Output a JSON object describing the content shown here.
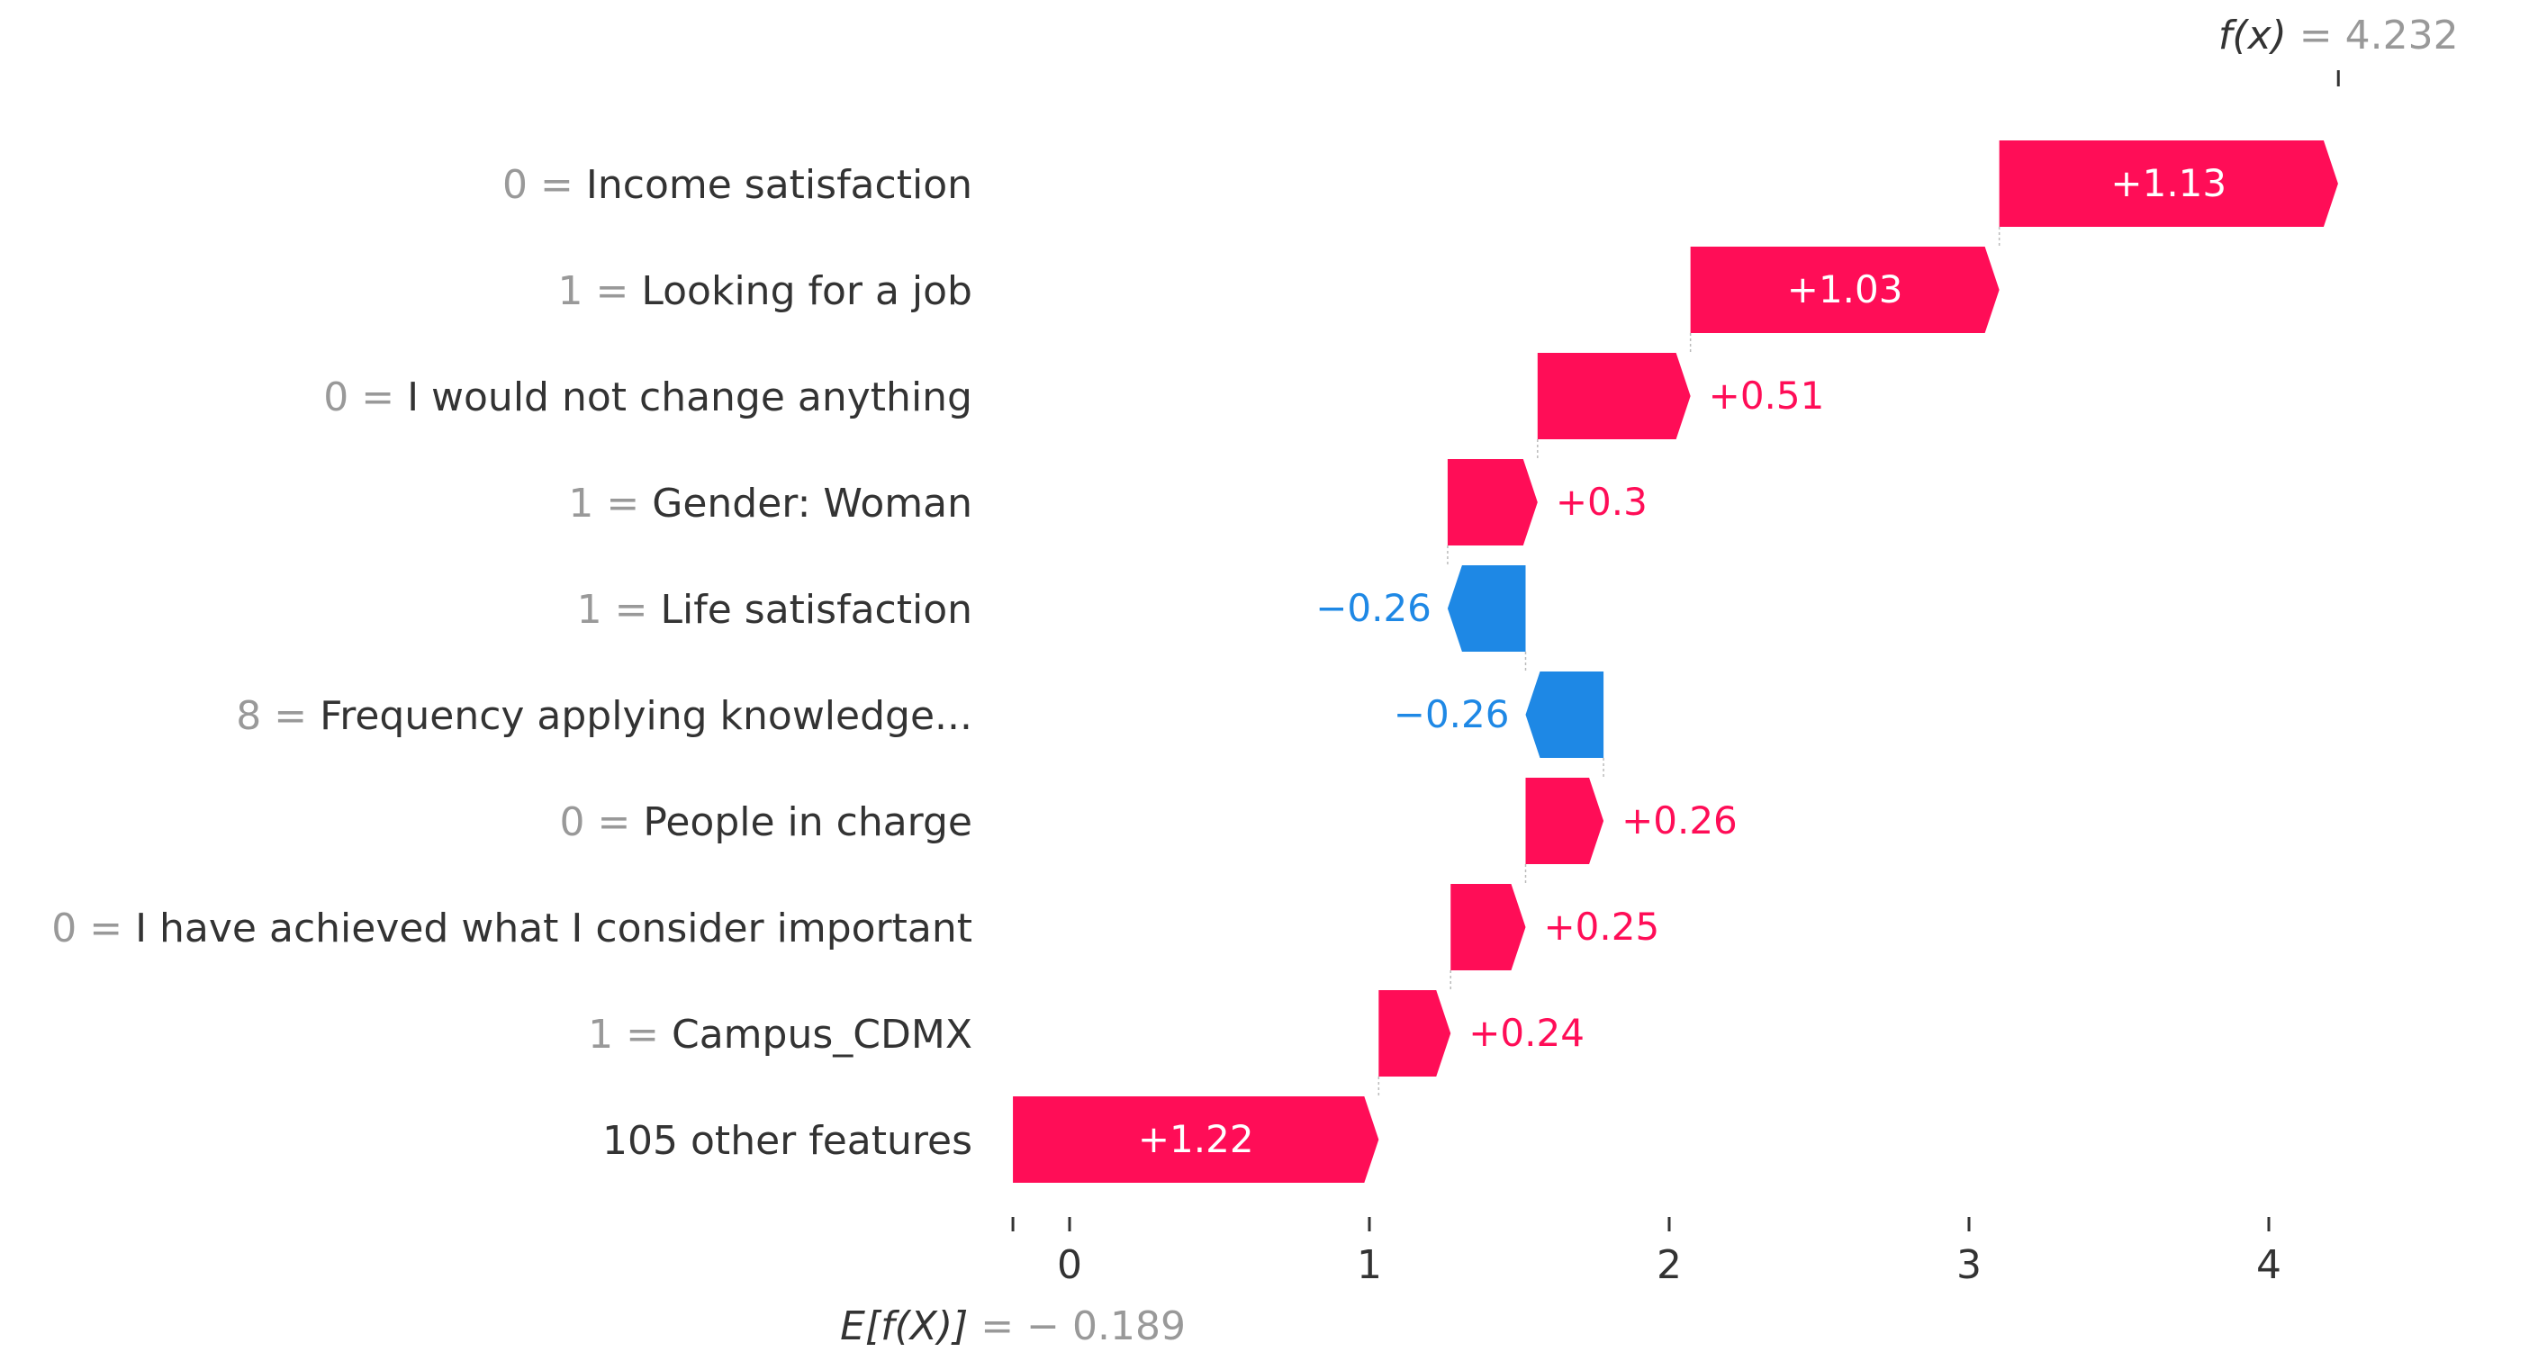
{
  "chart_data": {
    "type": "waterfall",
    "base_value": -0.189,
    "fx_value": 4.232,
    "fx_label": "f(x)",
    "fx_text": "= 4.232",
    "ex_label": "E[f(X)]",
    "ex_text": "= − 0.189",
    "xlim": [
      -0.35,
      4.7
    ],
    "xticks": [
      0,
      1,
      2,
      3,
      4
    ],
    "colors": {
      "positive": "#ff0d57",
      "negative": "#1e88e5",
      "value_text": "#999999",
      "label_text": "#333333"
    },
    "features": [
      {
        "value": "0 =",
        "name": "Income satisfaction",
        "shap": 1.13,
        "label": "+1.13"
      },
      {
        "value": "1 =",
        "name": "Looking for a job",
        "shap": 1.03,
        "label": "+1.03"
      },
      {
        "value": "0 =",
        "name": "I would not change anything",
        "shap": 0.51,
        "label": "+0.51"
      },
      {
        "value": "1 =",
        "name": "Gender: Woman",
        "shap": 0.3,
        "label": "+0.3"
      },
      {
        "value": "1 =",
        "name": "Life satisfaction",
        "shap": -0.26,
        "label": "−0.26"
      },
      {
        "value": "8 =",
        "name": "Frequency applying knowledge...",
        "shap": -0.26,
        "label": "−0.26"
      },
      {
        "value": "0 =",
        "name": "People in charge",
        "shap": 0.26,
        "label": "+0.26"
      },
      {
        "value": "0 =",
        "name": "I have achieved what I consider important",
        "shap": 0.25,
        "label": "+0.25"
      },
      {
        "value": "1 =",
        "name": "Campus_CDMX",
        "shap": 0.24,
        "label": "+0.24"
      },
      {
        "value": "",
        "name": "105 other features",
        "shap": 1.22,
        "label": "+1.22"
      }
    ]
  }
}
